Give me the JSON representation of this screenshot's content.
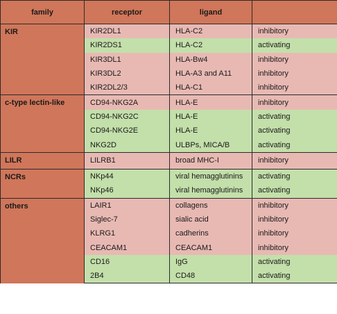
{
  "headers": [
    "family",
    "receptor",
    "ligand",
    ""
  ],
  "groups": [
    {
      "family": "KIR",
      "rows": [
        {
          "receptor": "KIR2DL1",
          "ligand": "HLA-C2",
          "function": "inhibitory"
        },
        {
          "receptor": "KIR2DS1",
          "ligand": "HLA-C2",
          "function": "activating"
        },
        {
          "receptor": "KIR3DL1",
          "ligand": "HLA-Bw4",
          "function": "inhibitory"
        },
        {
          "receptor": "KIR3DL2",
          "ligand": "HLA-A3 and A11",
          "function": "inhibitory"
        },
        {
          "receptor": "KIR2DL2/3",
          "ligand": "HLA-C1",
          "function": "inhibitory"
        }
      ]
    },
    {
      "family": "c-type lectin-like",
      "rows": [
        {
          "receptor": "CD94-NKG2A",
          "ligand": "HLA-E",
          "function": "inhibitory"
        },
        {
          "receptor": "CD94-NKG2C",
          "ligand": "HLA-E",
          "function": "activating"
        },
        {
          "receptor": "CD94-NKG2E",
          "ligand": "HLA-E",
          "function": "activating"
        },
        {
          "receptor": "NKG2D",
          "ligand": "ULBPs, MICA/B",
          "function": "activating"
        }
      ]
    },
    {
      "family": "LILR",
      "rows": [
        {
          "receptor": "LILRB1",
          "ligand": "broad MHC-I",
          "function": "inhibitory"
        }
      ]
    },
    {
      "family": "NCRs",
      "rows": [
        {
          "receptor": "NKp44",
          "ligand": "viral hemagglutinins",
          "function": "activating"
        },
        {
          "receptor": "NKp46",
          "ligand": "viral hemagglutinins",
          "function": "activating"
        }
      ]
    },
    {
      "family": "others",
      "rows": [
        {
          "receptor": "LAIR1",
          "ligand": "collagens",
          "function": "inhibitory"
        },
        {
          "receptor": "Siglec-7",
          "ligand": "sialic acid",
          "function": "inhibitory"
        },
        {
          "receptor": "KLRG1",
          "ligand": "cadherins",
          "function": "inhibitory"
        },
        {
          "receptor": "CEACAM1",
          "ligand": "CEACAM1",
          "function": "inhibitory"
        },
        {
          "receptor": "CD16",
          "ligand": "IgG",
          "function": "activating"
        },
        {
          "receptor": "2B4",
          "ligand": "CD48",
          "function": "activating"
        }
      ]
    }
  ]
}
